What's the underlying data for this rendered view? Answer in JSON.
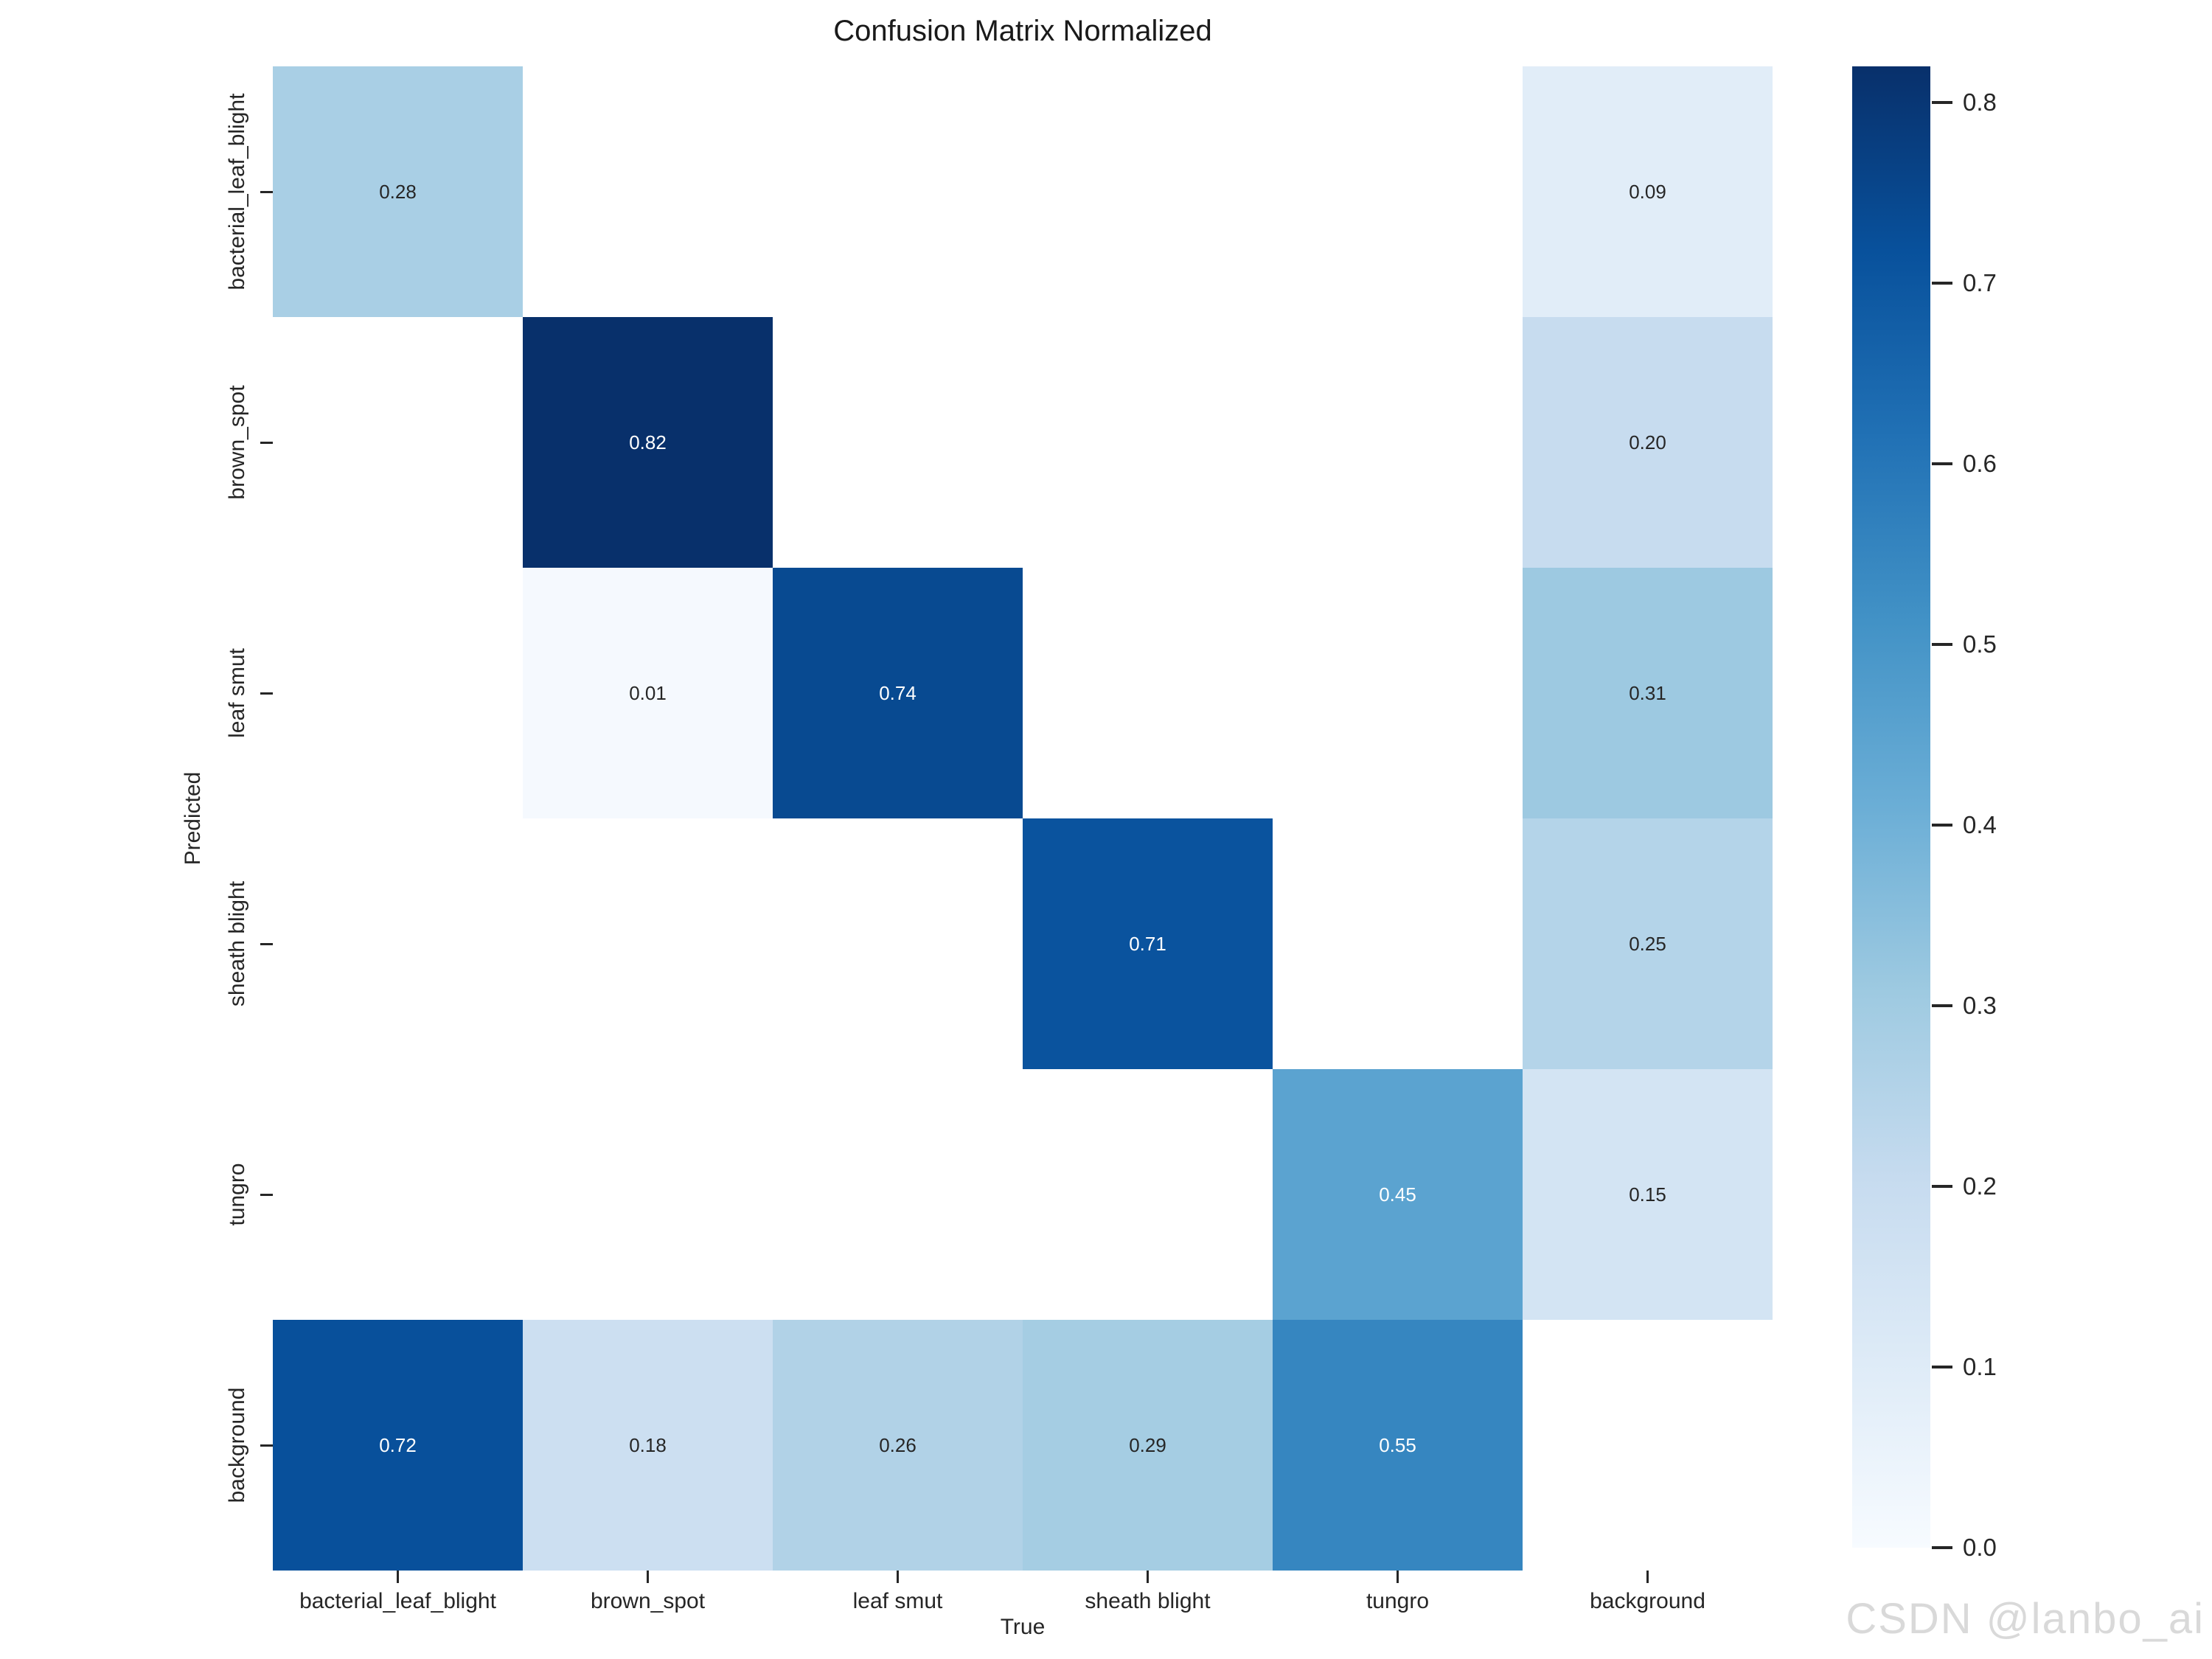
{
  "chart_data": {
    "type": "heatmap",
    "title": "Confusion Matrix Normalized",
    "xlabel": "True",
    "ylabel": "Predicted",
    "x_categories": [
      "bacterial_leaf_blight",
      "brown_spot",
      "leaf smut",
      "sheath blight",
      "tungro",
      "background"
    ],
    "y_categories": [
      "bacterial_leaf_blight",
      "brown_spot",
      "leaf smut",
      "sheath blight",
      "tungro",
      "background"
    ],
    "matrix": [
      [
        0.28,
        null,
        null,
        null,
        null,
        0.09
      ],
      [
        null,
        0.82,
        null,
        null,
        null,
        0.2
      ],
      [
        null,
        0.01,
        0.74,
        null,
        null,
        0.31
      ],
      [
        null,
        null,
        null,
        0.71,
        null,
        0.25
      ],
      [
        null,
        null,
        null,
        null,
        0.45,
        0.15
      ],
      [
        0.72,
        0.18,
        0.26,
        0.29,
        0.55,
        null
      ]
    ],
    "value_decimals": 2,
    "grid": false,
    "legend_position": "right-colorbar",
    "colorbar": {
      "vmin": 0.0,
      "vmax": 0.82,
      "ticks": [
        0.8,
        0.7,
        0.6,
        0.5,
        0.4,
        0.3,
        0.2,
        0.1,
        0.0
      ],
      "colormap": "Blues",
      "stops": [
        [
          0.0,
          "#f7fbff"
        ],
        [
          0.125,
          "#deebf7"
        ],
        [
          0.25,
          "#c6dbef"
        ],
        [
          0.375,
          "#9ecae1"
        ],
        [
          0.5,
          "#6baed6"
        ],
        [
          0.625,
          "#4292c6"
        ],
        [
          0.75,
          "#2171b5"
        ],
        [
          0.875,
          "#08519c"
        ],
        [
          1.0,
          "#08306b"
        ]
      ]
    },
    "empty_cell_color": "#ffffff",
    "annotation_color_dark": "#262626",
    "annotation_color_light": "#ffffff"
  },
  "watermark": {
    "text": "CSDN @lanbo_ai",
    "color": "#d9d9d9"
  }
}
